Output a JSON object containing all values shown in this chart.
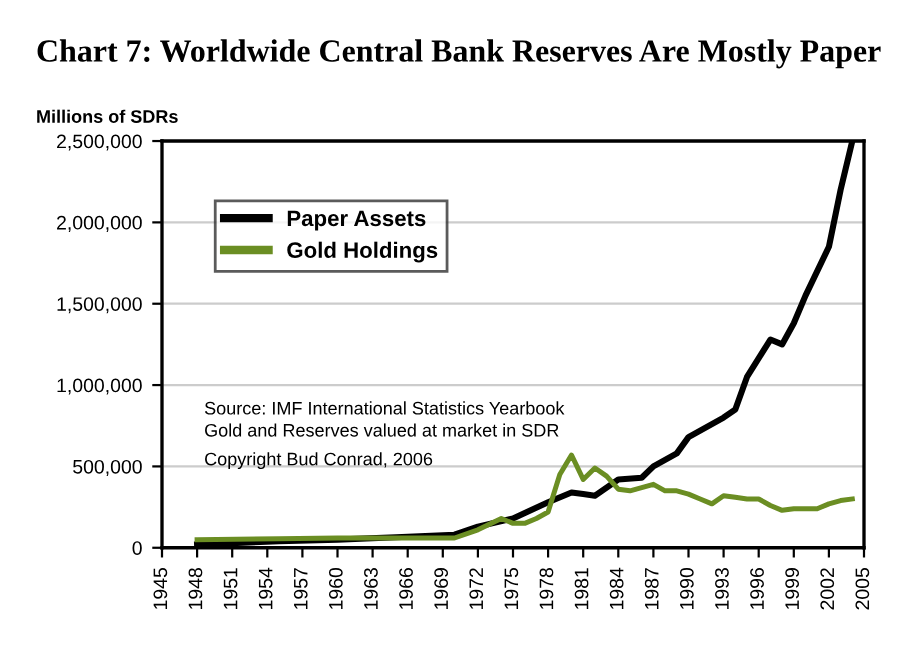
{
  "chart_data": {
    "type": "line",
    "title": "Chart 7: Worldwide Central Bank Reserves Are Mostly Paper",
    "ylabel": "Millions of SDRs",
    "annotations": [
      "Source: IMF International Statistics Yearbook\nGold and Reserves valued at market in SDR",
      "Copyright Bud Conrad, 2006"
    ],
    "series": [
      {
        "name": "Paper Assets",
        "color": "#000000",
        "x": [
          1948,
          1955,
          1960,
          1965,
          1970,
          1972,
          1975,
          1978,
          1980,
          1981,
          1982,
          1984,
          1986,
          1987,
          1989,
          1990,
          1991,
          1993,
          1994,
          1995,
          1997,
          1998,
          1999,
          2000,
          2002,
          2003,
          2004
        ],
        "values": [
          20000,
          40000,
          50000,
          65000,
          80000,
          130000,
          180000,
          280000,
          340000,
          330000,
          320000,
          420000,
          430000,
          500000,
          580000,
          680000,
          720000,
          800000,
          850000,
          1050000,
          1280000,
          1250000,
          1380000,
          1550000,
          1850000,
          2200000,
          2500000
        ]
      },
      {
        "name": "Gold Holdings",
        "color": "#6b8e23",
        "x": [
          1948,
          1955,
          1960,
          1965,
          1970,
          1972,
          1974,
          1975,
          1976,
          1977,
          1978,
          1979,
          1980,
          1981,
          1982,
          1983,
          1984,
          1985,
          1986,
          1987,
          1988,
          1989,
          1990,
          1991,
          1992,
          1993,
          1994,
          1995,
          1996,
          1997,
          1998,
          1999,
          2000,
          2001,
          2002,
          2003,
          2004
        ],
        "values": [
          50000,
          55000,
          60000,
          60000,
          60000,
          110000,
          180000,
          150000,
          150000,
          180000,
          220000,
          450000,
          570000,
          420000,
          490000,
          440000,
          360000,
          350000,
          370000,
          390000,
          350000,
          350000,
          330000,
          300000,
          270000,
          320000,
          310000,
          300000,
          300000,
          260000,
          230000,
          240000,
          240000,
          240000,
          270000,
          290000,
          300000
        ]
      }
    ],
    "xlim": [
      1945,
      2005
    ],
    "xticks": [
      1945,
      1948,
      1951,
      1954,
      1957,
      1960,
      1963,
      1966,
      1969,
      1972,
      1975,
      1978,
      1981,
      1984,
      1987,
      1990,
      1993,
      1996,
      1999,
      2002,
      2005
    ],
    "ylim": [
      0,
      2500000
    ],
    "yticks": [
      {
        "value": 0,
        "label": "0"
      },
      {
        "value": 500000,
        "label": "500,000"
      },
      {
        "value": 1000000,
        "label": "1,000,000"
      },
      {
        "value": 1500000,
        "label": "1,500,000"
      },
      {
        "value": 2000000,
        "label": "2,000,000"
      },
      {
        "value": 2500000,
        "label": "2,500,000"
      }
    ],
    "grid": "y",
    "legend": "top left",
    "line_style": "solid",
    "marker": "none"
  }
}
